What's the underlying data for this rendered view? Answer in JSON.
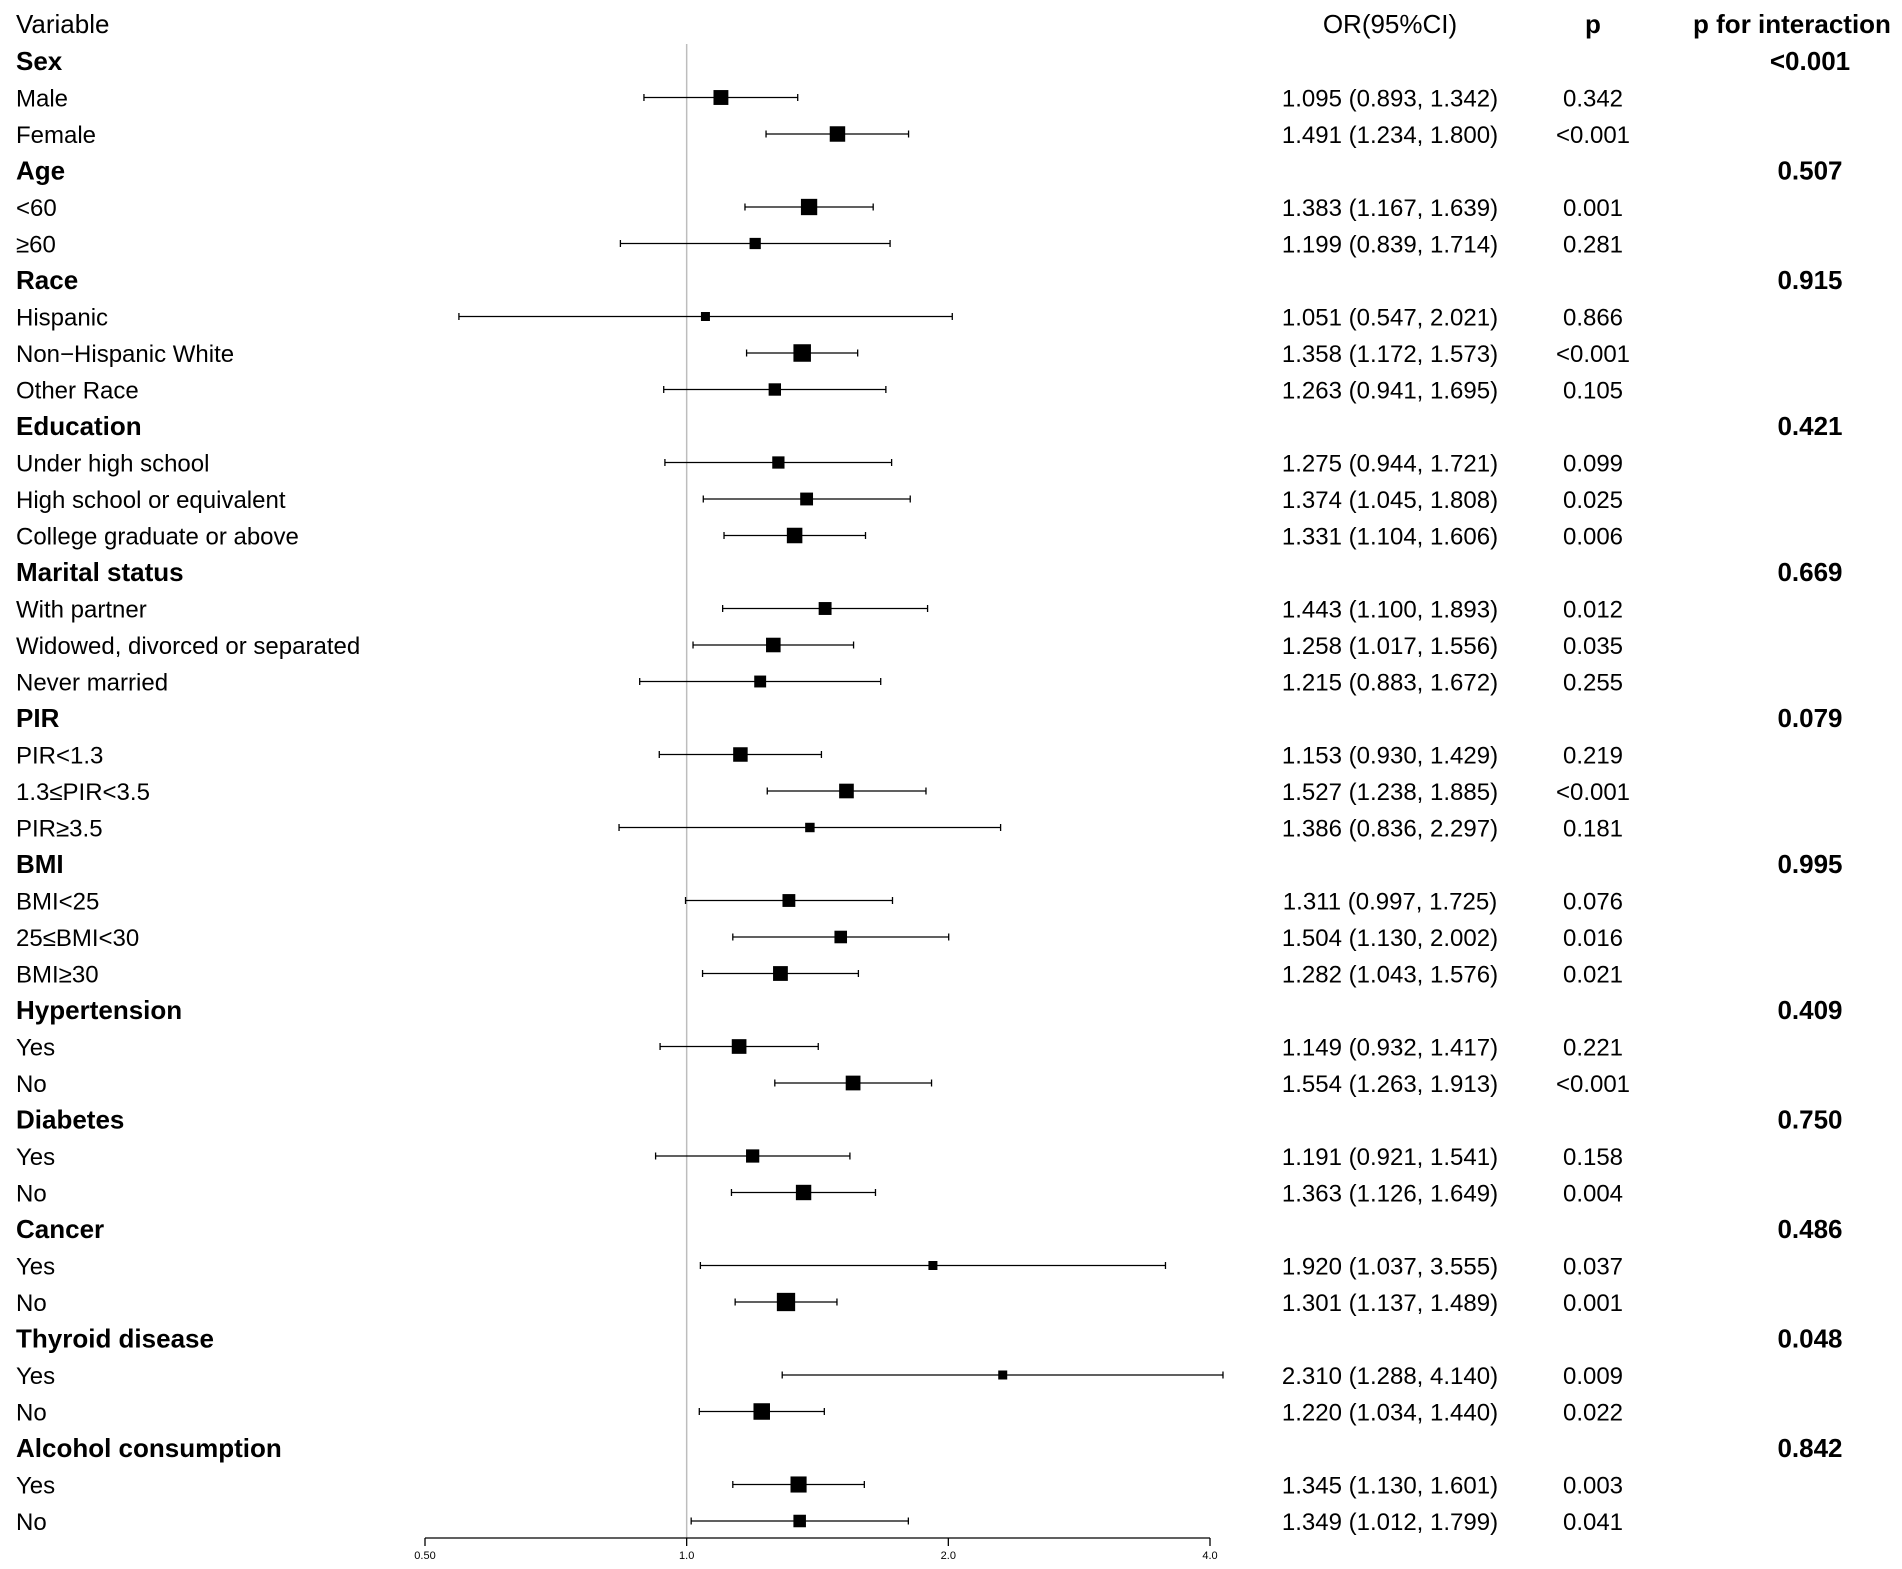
{
  "chart_data": {
    "type": "forest",
    "title": "",
    "xscale": "log2",
    "xlim": [
      0.5,
      4.0
    ],
    "reference_line": 1.0,
    "x_ticks": [
      {
        "value": 0.5,
        "label": "0.50"
      },
      {
        "value": 1.0,
        "label": "1.0"
      },
      {
        "value": 2.0,
        "label": "2.0"
      },
      {
        "value": 4.0,
        "label": "4.0"
      }
    ],
    "headers": {
      "variable": "Variable",
      "or_ci": "OR(95%CI)",
      "p": "p",
      "p_interaction": "p for interaction"
    },
    "rows": [
      {
        "kind": "group",
        "label": "Sex",
        "p_interaction": "<0.001"
      },
      {
        "kind": "item",
        "label": "Male",
        "or": 1.095,
        "lower": 0.893,
        "upper": 1.342,
        "or_ci": "1.095 (0.893, 1.342)",
        "p": "0.342"
      },
      {
        "kind": "item",
        "label": "Female",
        "or": 1.491,
        "lower": 1.234,
        "upper": 1.8,
        "or_ci": "1.491 (1.234, 1.800)",
        "p": "<0.001"
      },
      {
        "kind": "group",
        "label": "Age",
        "p_interaction": "0.507"
      },
      {
        "kind": "item",
        "label": "<60",
        "or": 1.383,
        "lower": 1.167,
        "upper": 1.639,
        "or_ci": "1.383 (1.167, 1.639)",
        "p": "0.001"
      },
      {
        "kind": "item",
        "label": "≥60",
        "or": 1.199,
        "lower": 0.839,
        "upper": 1.714,
        "or_ci": "1.199 (0.839, 1.714)",
        "p": "0.281"
      },
      {
        "kind": "group",
        "label": "Race",
        "p_interaction": "0.915"
      },
      {
        "kind": "item",
        "label": "Hispanic",
        "or": 1.051,
        "lower": 0.547,
        "upper": 2.021,
        "or_ci": "1.051 (0.547, 2.021)",
        "p": "0.866"
      },
      {
        "kind": "item",
        "label": "Non−Hispanic White",
        "or": 1.358,
        "lower": 1.172,
        "upper": 1.573,
        "or_ci": "1.358 (1.172, 1.573)",
        "p": "<0.001"
      },
      {
        "kind": "item",
        "label": "Other Race",
        "or": 1.263,
        "lower": 0.941,
        "upper": 1.695,
        "or_ci": "1.263 (0.941, 1.695)",
        "p": "0.105"
      },
      {
        "kind": "group",
        "label": "Education",
        "p_interaction": "0.421"
      },
      {
        "kind": "item",
        "label": "Under high school",
        "or": 1.275,
        "lower": 0.944,
        "upper": 1.721,
        "or_ci": "1.275 (0.944, 1.721)",
        "p": "0.099"
      },
      {
        "kind": "item",
        "label": "High school or equivalent",
        "or": 1.374,
        "lower": 1.045,
        "upper": 1.808,
        "or_ci": "1.374 (1.045, 1.808)",
        "p": "0.025"
      },
      {
        "kind": "item",
        "label": "College graduate or above",
        "or": 1.331,
        "lower": 1.104,
        "upper": 1.606,
        "or_ci": "1.331 (1.104, 1.606)",
        "p": "0.006"
      },
      {
        "kind": "group",
        "label": "Marital status",
        "p_interaction": "0.669"
      },
      {
        "kind": "item",
        "label": "With partner",
        "or": 1.443,
        "lower": 1.1,
        "upper": 1.893,
        "or_ci": "1.443 (1.100, 1.893)",
        "p": "0.012"
      },
      {
        "kind": "item",
        "label": "Widowed, divorced or separated",
        "or": 1.258,
        "lower": 1.017,
        "upper": 1.556,
        "or_ci": "1.258 (1.017, 1.556)",
        "p": "0.035"
      },
      {
        "kind": "item",
        "label": "Never married",
        "or": 1.215,
        "lower": 0.883,
        "upper": 1.672,
        "or_ci": "1.215 (0.883, 1.672)",
        "p": "0.255"
      },
      {
        "kind": "group",
        "label": "PIR",
        "p_interaction": "0.079"
      },
      {
        "kind": "item",
        "label": "PIR<1.3",
        "or": 1.153,
        "lower": 0.93,
        "upper": 1.429,
        "or_ci": "1.153 (0.930, 1.429)",
        "p": "0.219"
      },
      {
        "kind": "item",
        "label": "1.3≤PIR<3.5",
        "or": 1.527,
        "lower": 1.238,
        "upper": 1.885,
        "or_ci": "1.527 (1.238, 1.885)",
        "p": "<0.001"
      },
      {
        "kind": "item",
        "label": "PIR≥3.5",
        "or": 1.386,
        "lower": 0.836,
        "upper": 2.297,
        "or_ci": "1.386 (0.836, 2.297)",
        "p": "0.181"
      },
      {
        "kind": "group",
        "label": "BMI",
        "p_interaction": "0.995"
      },
      {
        "kind": "item",
        "label": "BMI<25",
        "or": 1.311,
        "lower": 0.997,
        "upper": 1.725,
        "or_ci": "1.311 (0.997, 1.725)",
        "p": "0.076"
      },
      {
        "kind": "item",
        "label": "25≤BMI<30",
        "or": 1.504,
        "lower": 1.13,
        "upper": 2.002,
        "or_ci": "1.504 (1.130, 2.002)",
        "p": "0.016"
      },
      {
        "kind": "item",
        "label": "BMI≥30",
        "or": 1.282,
        "lower": 1.043,
        "upper": 1.576,
        "or_ci": "1.282 (1.043, 1.576)",
        "p": "0.021"
      },
      {
        "kind": "group",
        "label": "Hypertension",
        "p_interaction": "0.409"
      },
      {
        "kind": "item",
        "label": "Yes",
        "or": 1.149,
        "lower": 0.932,
        "upper": 1.417,
        "or_ci": "1.149 (0.932, 1.417)",
        "p": "0.221"
      },
      {
        "kind": "item",
        "label": "No",
        "or": 1.554,
        "lower": 1.263,
        "upper": 1.913,
        "or_ci": "1.554 (1.263, 1.913)",
        "p": "<0.001"
      },
      {
        "kind": "group",
        "label": "Diabetes",
        "p_interaction": "0.750"
      },
      {
        "kind": "item",
        "label": "Yes",
        "or": 1.191,
        "lower": 0.921,
        "upper": 1.541,
        "or_ci": "1.191 (0.921, 1.541)",
        "p": "0.158"
      },
      {
        "kind": "item",
        "label": "No",
        "or": 1.363,
        "lower": 1.126,
        "upper": 1.649,
        "or_ci": "1.363 (1.126, 1.649)",
        "p": "0.004"
      },
      {
        "kind": "group",
        "label": "Cancer",
        "p_interaction": "0.486"
      },
      {
        "kind": "item",
        "label": "Yes",
        "or": 1.92,
        "lower": 1.037,
        "upper": 3.555,
        "or_ci": "1.920 (1.037, 3.555)",
        "p": "0.037"
      },
      {
        "kind": "item",
        "label": "No",
        "or": 1.301,
        "lower": 1.137,
        "upper": 1.489,
        "or_ci": "1.301 (1.137, 1.489)",
        "p": "0.001"
      },
      {
        "kind": "group",
        "label": "Thyroid disease",
        "p_interaction": "0.048"
      },
      {
        "kind": "item",
        "label": "Yes",
        "or": 2.31,
        "lower": 1.288,
        "upper": 4.14,
        "or_ci": "2.310 (1.288, 4.140)",
        "p": "0.009"
      },
      {
        "kind": "item",
        "label": "No",
        "or": 1.22,
        "lower": 1.034,
        "upper": 1.44,
        "or_ci": "1.220 (1.034, 1.440)",
        "p": "0.022"
      },
      {
        "kind": "group",
        "label": "Alcohol consumption",
        "p_interaction": "0.842"
      },
      {
        "kind": "item",
        "label": "Yes",
        "or": 1.345,
        "lower": 1.13,
        "upper": 1.601,
        "or_ci": "1.345 (1.130, 1.601)",
        "p": "0.003"
      },
      {
        "kind": "item",
        "label": "No",
        "or": 1.349,
        "lower": 1.012,
        "upper": 1.799,
        "or_ci": "1.349 (1.012, 1.799)",
        "p": "0.041"
      }
    ]
  }
}
